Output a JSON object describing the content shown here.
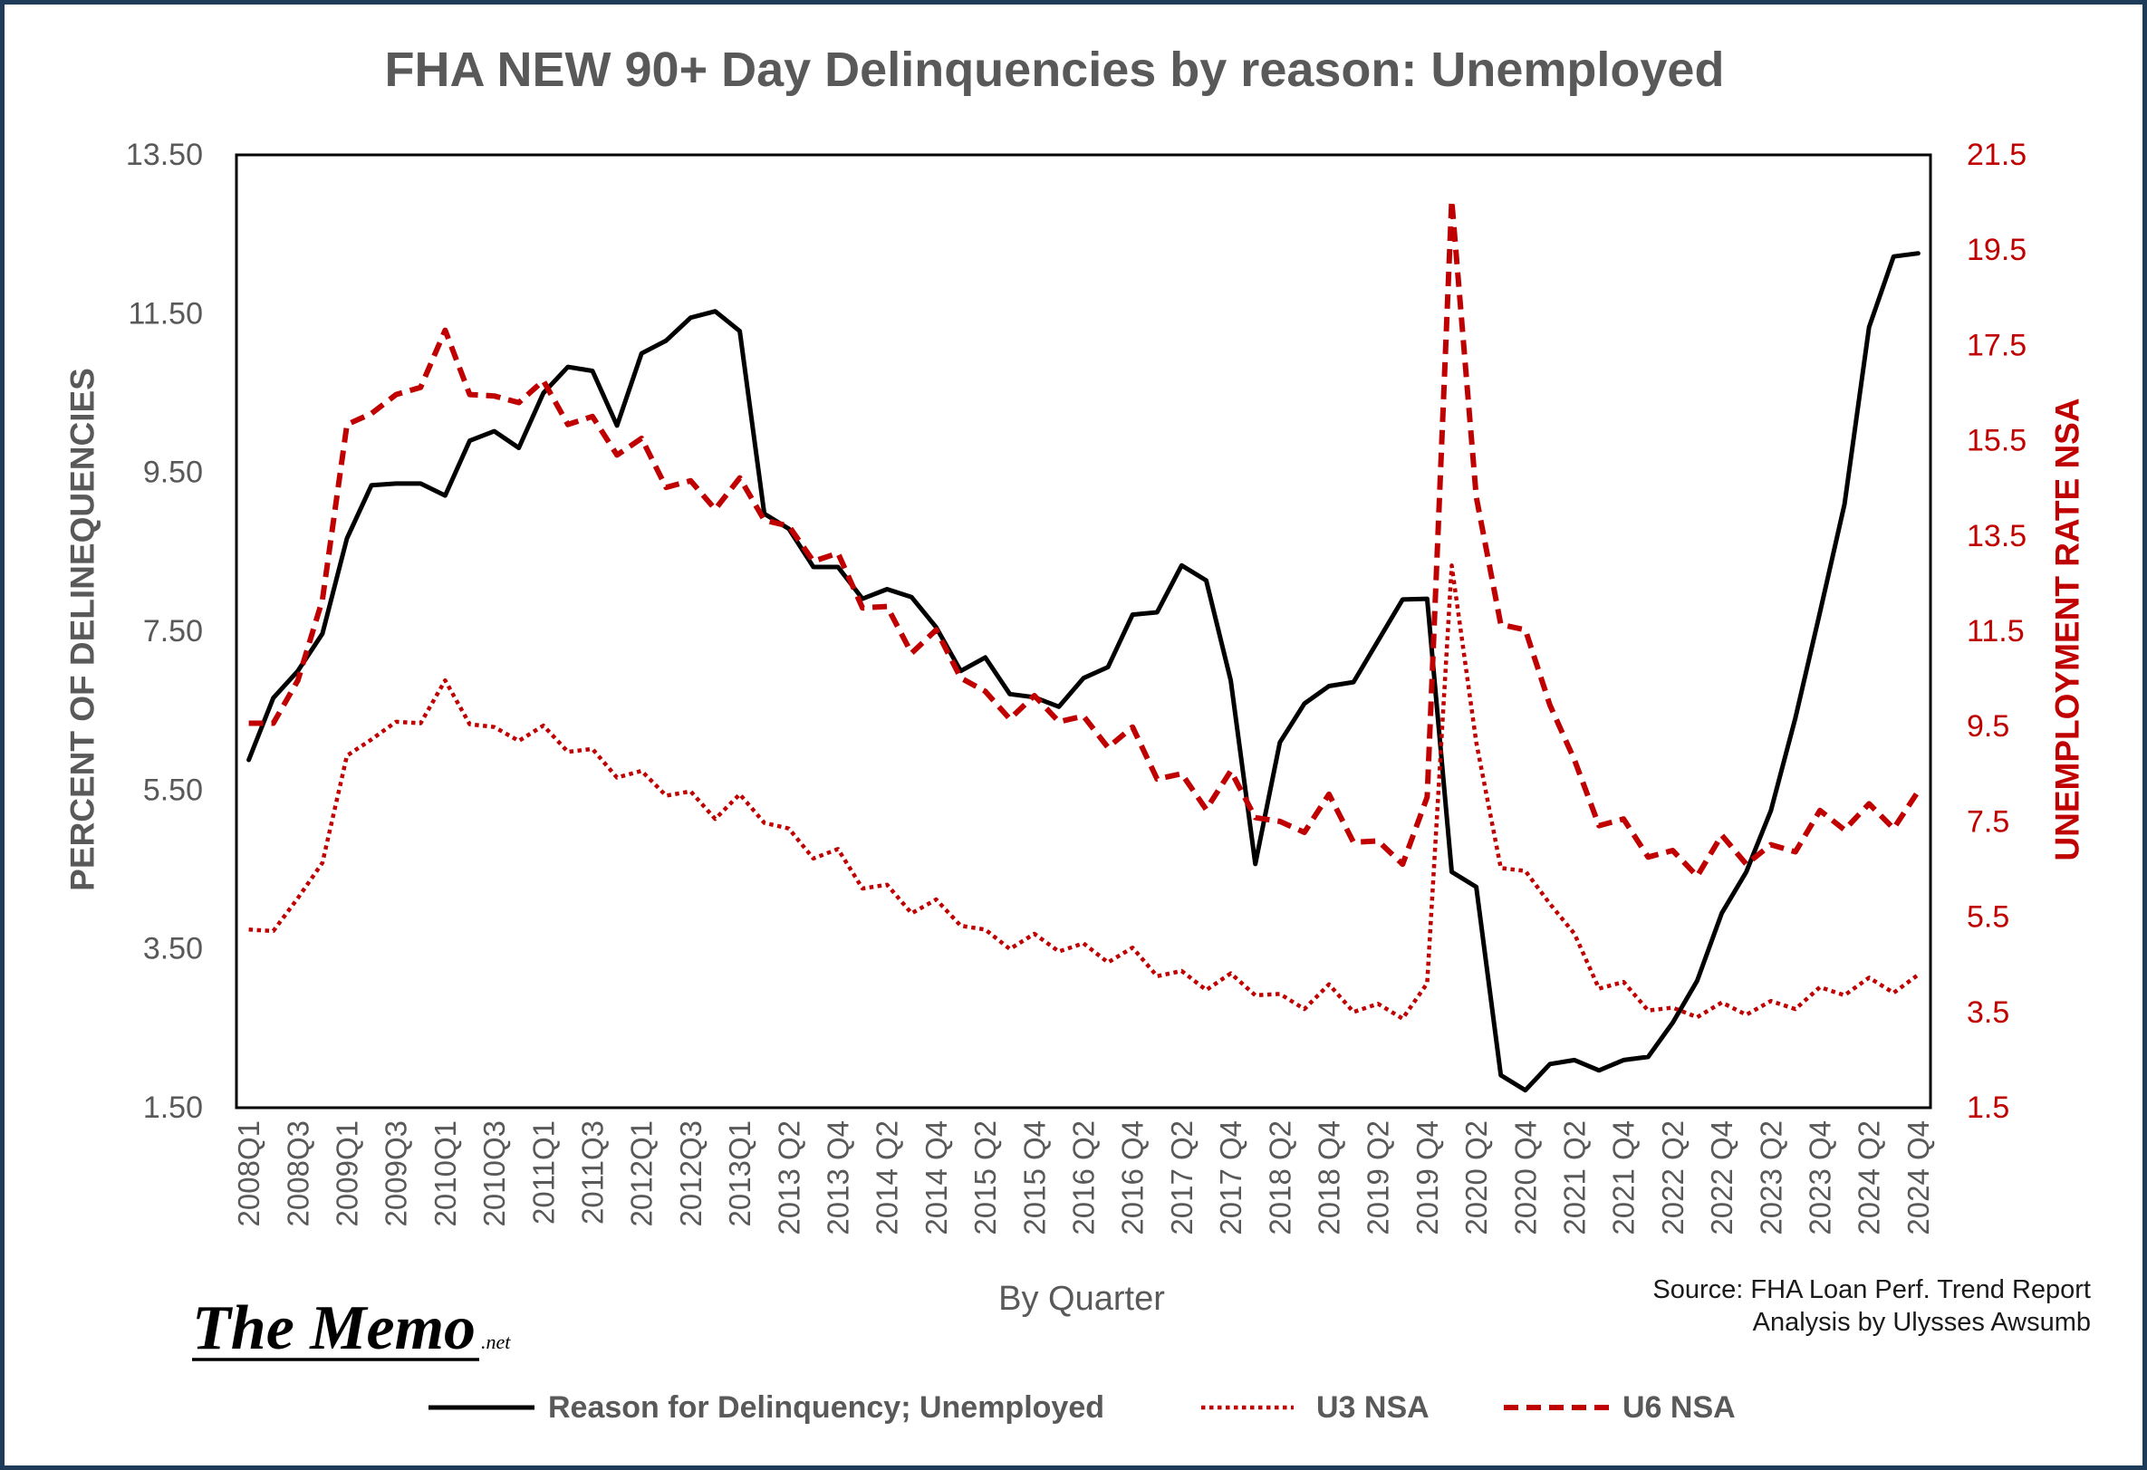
{
  "chart_data": {
    "type": "line",
    "title": "FHA NEW 90+ Day Delinquencies by reason: Unemployed",
    "xlabel": "By Quarter",
    "ylabel": "PERCENT OF DELINEQUENCIES",
    "y2label": "UNEMPLOYMENT RATE NSA",
    "ylim": [
      1.5,
      13.5
    ],
    "y2lim": [
      1.5,
      21.5
    ],
    "y_ticks": [
      "1.50",
      "3.50",
      "5.50",
      "7.50",
      "9.50",
      "11.50",
      "13.50"
    ],
    "y2_ticks": [
      "1.5",
      "3.5",
      "5.5",
      "7.5",
      "9.5",
      "11.5",
      "13.5",
      "15.5",
      "17.5",
      "19.5",
      "21.5"
    ],
    "x_tick_labels": [
      "2008Q1",
      "2008Q3",
      "2009Q1",
      "2009Q3",
      "2010Q1",
      "2010Q3",
      "2011Q1",
      "2011Q3",
      "2012Q1",
      "2012Q3",
      "2013Q1",
      "2013 Q2",
      "2013 Q4",
      "2014 Q2",
      "2014 Q4",
      "2015 Q2",
      "2015 Q4",
      "2016 Q2",
      "2016 Q4",
      "2017 Q2",
      "2017 Q4",
      "2018 Q2",
      "2018 Q4",
      "2019 Q2",
      "2019 Q4",
      "2020 Q2",
      "2020 Q4",
      "2021 Q2",
      "2021 Q4",
      "2022 Q2",
      "2022 Q4",
      "2023 Q2",
      "2023 Q4",
      "2024 Q2",
      "2024 Q4"
    ],
    "grid": false,
    "legend": "bottom",
    "series": [
      {
        "name": "Reason for Delinquency; Unemployed",
        "axis": "left",
        "style": "solid",
        "color": "#000000",
        "values": [
          5.88,
          6.66,
          7.0,
          7.47,
          8.67,
          9.34,
          9.36,
          9.36,
          9.21,
          9.9,
          10.02,
          9.81,
          10.5,
          10.83,
          10.78,
          10.09,
          11.0,
          11.16,
          11.45,
          11.53,
          11.28,
          8.98,
          8.79,
          8.31,
          8.31,
          7.91,
          8.03,
          7.93,
          7.55,
          7.0,
          7.17,
          6.71,
          6.67,
          6.55,
          6.91,
          7.05,
          7.71,
          7.74,
          8.33,
          8.14,
          6.88,
          4.57,
          6.1,
          6.59,
          6.81,
          6.86,
          7.38,
          7.9,
          7.91,
          4.47,
          4.28,
          1.91,
          1.72,
          2.05,
          2.1,
          1.97,
          2.1,
          2.14,
          2.57,
          3.1,
          3.95,
          4.47,
          5.24,
          6.41,
          7.74,
          9.1,
          11.33,
          12.22,
          12.26
        ]
      },
      {
        "name": "U3 NSA",
        "axis": "right",
        "style": "dotted",
        "color": "#c00000",
        "values": [
          5.24,
          5.21,
          5.9,
          6.64,
          8.89,
          9.23,
          9.6,
          9.57,
          10.47,
          9.55,
          9.49,
          9.2,
          9.52,
          8.97,
          9.03,
          8.43,
          8.57,
          8.05,
          8.14,
          7.56,
          8.08,
          7.48,
          7.36,
          6.73,
          6.93,
          6.1,
          6.18,
          5.58,
          5.87,
          5.32,
          5.24,
          4.83,
          5.15,
          4.78,
          4.95,
          4.55,
          4.86,
          4.26,
          4.37,
          3.97,
          4.32,
          3.86,
          3.89,
          3.57,
          4.09,
          3.51,
          3.68,
          3.37,
          4.11,
          12.88,
          9.17,
          6.53,
          6.47,
          5.78,
          5.15,
          4.0,
          4.14,
          3.54,
          3.6,
          3.4,
          3.71,
          3.45,
          3.74,
          3.57,
          4.03,
          3.86,
          4.23,
          3.91,
          4.29
        ]
      },
      {
        "name": "U6 NSA",
        "axis": "right",
        "style": "dashed",
        "color": "#c00000",
        "values": [
          9.57,
          9.57,
          10.47,
          12.16,
          15.84,
          16.07,
          16.47,
          16.62,
          17.82,
          16.47,
          16.44,
          16.3,
          16.76,
          15.84,
          16.01,
          15.2,
          15.55,
          14.52,
          14.66,
          14.06,
          14.72,
          13.83,
          13.71,
          12.97,
          13.14,
          11.99,
          12.02,
          11.04,
          11.53,
          10.52,
          10.24,
          9.66,
          10.15,
          9.6,
          9.72,
          9.06,
          9.49,
          8.4,
          8.51,
          7.76,
          8.57,
          7.59,
          7.51,
          7.28,
          8.08,
          7.07,
          7.1,
          6.61,
          8.02,
          20.55,
          14.32,
          11.64,
          11.53,
          9.95,
          8.8,
          7.42,
          7.56,
          6.76,
          6.9,
          6.36,
          7.22,
          6.61,
          7.02,
          6.87,
          7.74,
          7.33,
          7.88,
          7.36,
          8.14
        ]
      }
    ]
  },
  "source": {
    "line1": "Source: FHA Loan Perf. Trend Report",
    "line2": "Analysis by Ulysses Awsumb"
  },
  "logo": {
    "main": "The Memo",
    "suffix": ".net"
  },
  "colors": {
    "frame": "#1f3b5a",
    "accent_red": "#c00000",
    "text_gray": "#595959"
  }
}
